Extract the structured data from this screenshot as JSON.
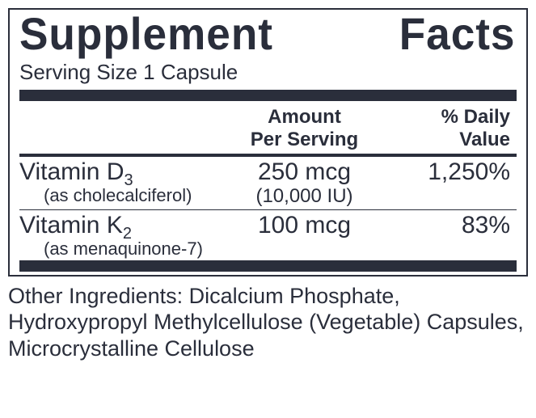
{
  "colors": {
    "ink": "#2a2e3b",
    "background": "#ffffff"
  },
  "title": "Supplement Facts",
  "serving": "Serving Size 1 Capsule",
  "headers": {
    "amount_l1": "Amount",
    "amount_l2": "Per Serving",
    "dv_l1": "% Daily",
    "dv_l2": "Value"
  },
  "rows": [
    {
      "name_prefix": "Vitamin D",
      "name_subscript": "3",
      "name_detail": "(as cholecalciferol)",
      "amount": "250 mcg",
      "amount_detail": "(10,000 IU)",
      "dv": "1,250%"
    },
    {
      "name_prefix": "Vitamin K",
      "name_subscript": "2",
      "name_detail": "(as menaquinone-7)",
      "amount": "100 mcg",
      "amount_detail": "",
      "dv": "83%"
    }
  ],
  "footer": "Other Ingredients: Dicalcium Phosphate, Hydroxypropyl Methylcellulose (Vegetable) Capsules, Microcrystalline Cellulose"
}
